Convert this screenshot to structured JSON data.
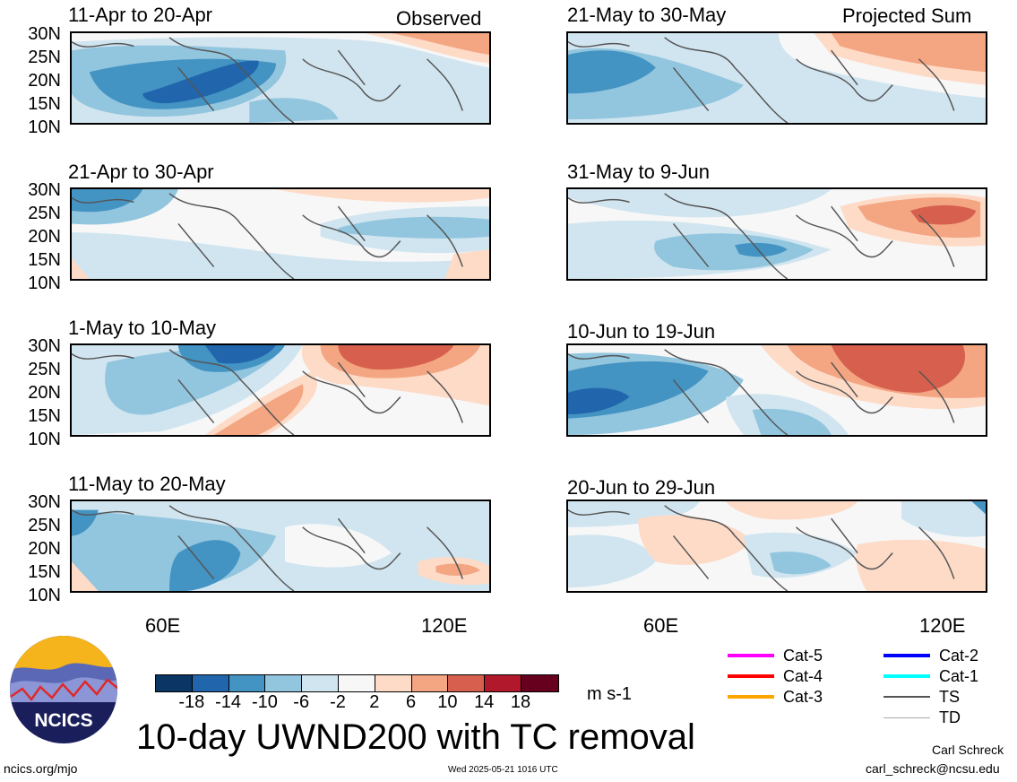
{
  "header": {
    "left_label": "Observed",
    "right_label": "Projected Sum"
  },
  "lat_ticks": [
    "30N",
    "25N",
    "20N",
    "15N",
    "10N"
  ],
  "lon_ticks": [
    "60E",
    "120E"
  ],
  "panels_left": [
    {
      "title": "11-Apr to 20-Apr"
    },
    {
      "title": "21-Apr to 30-Apr"
    },
    {
      "title": "1-May to 10-May"
    },
    {
      "title": "11-May to 20-May"
    }
  ],
  "panels_right": [
    {
      "title": "21-May to 30-May"
    },
    {
      "title": "31-May to 9-Jun"
    },
    {
      "title": "10-Jun to 19-Jun"
    },
    {
      "title": "20-Jun to 29-Jun"
    }
  ],
  "colorbar": {
    "colors": [
      "#0a3564",
      "#2166ac",
      "#4393c3",
      "#92c5de",
      "#d1e5f0",
      "#f7f7f7",
      "#fddbc7",
      "#f4a582",
      "#d6604d",
      "#b2182b",
      "#67001f"
    ],
    "ticks": [
      "-18",
      "-14",
      "-10",
      "-6",
      "-2",
      "2",
      "6",
      "10",
      "14",
      "18"
    ],
    "units": "m s-1"
  },
  "main_title": "10-day UWND200 with TC removal",
  "legend": [
    {
      "label": "Cat-5",
      "color": "#ff00ff"
    },
    {
      "label": "Cat-4",
      "color": "#ff0000"
    },
    {
      "label": "Cat-3",
      "color": "#ffa500"
    },
    {
      "label": "Cat-2",
      "color": "#0000ff"
    },
    {
      "label": "Cat-1",
      "color": "#00ffff"
    },
    {
      "label": "TS",
      "color": "#555555"
    },
    {
      "label": "TD",
      "color": "#aaaaaa"
    }
  ],
  "logo": {
    "text": "NCICS"
  },
  "footer": {
    "url": "ncics.org/mjo",
    "timestamp": "Wed 2025-05-21 1016 UTC",
    "author": "Carl Schreck",
    "email": "carl_schreck@ncsu.edu"
  }
}
